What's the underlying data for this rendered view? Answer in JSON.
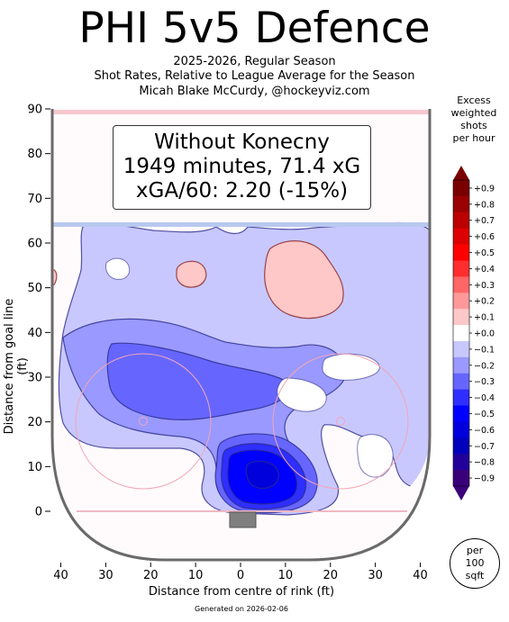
{
  "chart_data": {
    "type": "heatmap",
    "title": "PHI 5v5 Defence",
    "subtitle_lines": [
      "2025-2026, Regular Season",
      "Shot Rates, Relative to League Average for the Season",
      "Micah Blake McCurdy, @hockeyviz.com"
    ],
    "annotation_lines": [
      "Without Konecny",
      "1949 minutes, 71.4 xG",
      "xGA/60: 2.20 (-15%)"
    ],
    "xlabel": "Distance from centre of rink (ft)",
    "ylabel": "Distance from goal line (ft)",
    "x_ticks": [
      "40",
      "30",
      "20",
      "10",
      "0",
      "10",
      "20",
      "30",
      "40"
    ],
    "y_ticks": [
      "90",
      "80",
      "70",
      "60",
      "50",
      "40",
      "30",
      "20",
      "10",
      "0"
    ],
    "xlim": [
      -42,
      42
    ],
    "ylim": [
      -11,
      90
    ],
    "colorbar": {
      "title_lines": [
        "Excess",
        "weighted",
        "shots",
        "per hour"
      ],
      "ticks": [
        "+0.9",
        "+0.8",
        "+0.7",
        "+0.6",
        "+0.5",
        "+0.4",
        "+0.3",
        "+0.2",
        "+0.1",
        "+0.0",
        "−0.1",
        "−0.2",
        "−0.3",
        "−0.4",
        "−0.5",
        "−0.6",
        "−0.7",
        "−0.8",
        "−0.9"
      ],
      "levels": [
        0.9,
        0.8,
        0.7,
        0.6,
        0.5,
        0.4,
        0.3,
        0.2,
        0.1,
        0.0,
        -0.1,
        -0.2,
        -0.3,
        -0.4,
        -0.5,
        -0.6,
        -0.7,
        -0.8,
        -0.9
      ],
      "colors": [
        "#7a0000",
        "#9a0000",
        "#bb0000",
        "#dd0000",
        "#ff0000",
        "#ff2e2e",
        "#ff6666",
        "#ff9999",
        "#ffc8c8",
        "#ffffff",
        "#c8c8ff",
        "#9999ff",
        "#6666ff",
        "#2e2eff",
        "#0000ff",
        "#0000dd",
        "#0000bb",
        "#22009a",
        "#3a007a"
      ]
    },
    "per_unit_lines": [
      "per",
      "100",
      "sqft"
    ],
    "footer": "Generated on 2026-02-06",
    "regions": [
      {
        "name": "blue-outer",
        "level": -0.1
      },
      {
        "name": "blue-left",
        "level": -0.2
      },
      {
        "name": "blue-left-inner",
        "level": -0.3
      },
      {
        "name": "blue-slot",
        "level": -0.3
      },
      {
        "name": "blue-slot-2",
        "level": -0.4
      },
      {
        "name": "blue-slot-3",
        "level": -0.5
      },
      {
        "name": "blue-slot-core",
        "level": -0.6
      },
      {
        "name": "red-high",
        "level": 0.1
      },
      {
        "name": "red-left-dot",
        "level": 0.1
      },
      {
        "name": "red-left-edge",
        "level": 0.1
      }
    ]
  }
}
